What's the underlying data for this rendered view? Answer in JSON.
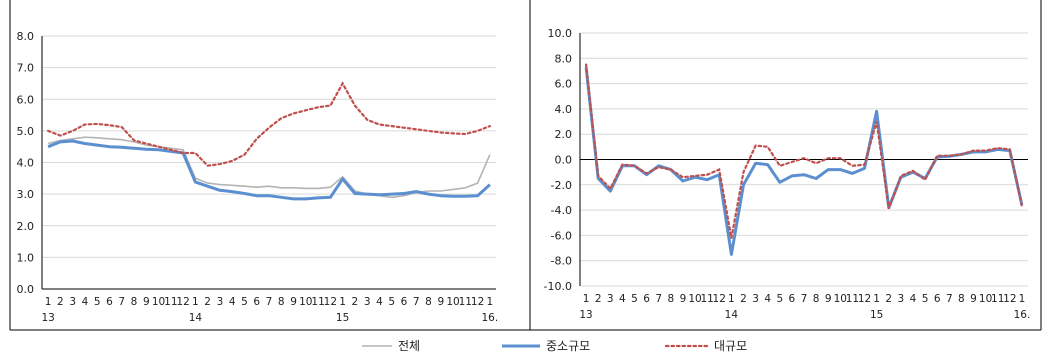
{
  "colors": {
    "total": "#b4b4b4",
    "sme": "#5b8fd0",
    "large": "#c0504d",
    "grid": "#d9d9d9",
    "axis": "#000000"
  },
  "legend": [
    {
      "key": "total",
      "label": "전체",
      "style": "solid-thin"
    },
    {
      "key": "sme",
      "label": "중소규모",
      "style": "solid-thick"
    },
    {
      "key": "large",
      "label": "대규모",
      "style": "dotted"
    }
  ],
  "chart_data": [
    {
      "type": "line",
      "ylim": [
        0,
        8
      ],
      "ytick_step": 1,
      "ytick_labels": [
        "0.0",
        "1.0",
        "2.0",
        "3.0",
        "4.0",
        "5.0",
        "6.0",
        "7.0",
        "8.0"
      ],
      "x_labels": [
        "1",
        "2",
        "3",
        "4",
        "5",
        "6",
        "7",
        "8",
        "9",
        "10",
        "11",
        "12",
        "1",
        "2",
        "3",
        "4",
        "5",
        "6",
        "7",
        "8",
        "9",
        "10",
        "11",
        "12",
        "1",
        "2",
        "3",
        "4",
        "5",
        "6",
        "7",
        "8",
        "9",
        "10",
        "11",
        "12",
        "1"
      ],
      "year_labels": [
        {
          "index": 0,
          "text": "13"
        },
        {
          "index": 12,
          "text": "14"
        },
        {
          "index": 24,
          "text": "15"
        },
        {
          "index": 36,
          "text": "16."
        }
      ],
      "series": [
        {
          "key": "total",
          "values": [
            4.6,
            4.7,
            4.75,
            4.8,
            4.78,
            4.75,
            4.72,
            4.65,
            4.55,
            4.5,
            4.45,
            4.4,
            3.5,
            3.35,
            3.3,
            3.28,
            3.25,
            3.22,
            3.25,
            3.2,
            3.2,
            3.18,
            3.18,
            3.22,
            3.55,
            3.1,
            3.0,
            2.95,
            2.9,
            2.95,
            3.05,
            3.1,
            3.1,
            3.15,
            3.2,
            3.35,
            4.25
          ]
        },
        {
          "key": "sme",
          "values": [
            4.5,
            4.65,
            4.68,
            4.6,
            4.55,
            4.5,
            4.48,
            4.45,
            4.42,
            4.4,
            4.35,
            4.3,
            3.38,
            3.25,
            3.12,
            3.08,
            3.02,
            2.95,
            2.95,
            2.9,
            2.85,
            2.85,
            2.88,
            2.9,
            3.48,
            3.02,
            3.0,
            2.98,
            3.0,
            3.02,
            3.08,
            3.0,
            2.95,
            2.93,
            2.93,
            2.95,
            3.3
          ]
        },
        {
          "key": "large",
          "values": [
            5.0,
            4.85,
            5.0,
            5.2,
            5.22,
            5.18,
            5.12,
            4.7,
            4.6,
            4.5,
            4.4,
            4.3,
            4.3,
            3.9,
            3.95,
            4.05,
            4.25,
            4.75,
            5.1,
            5.4,
            5.55,
            5.65,
            5.75,
            5.8,
            6.5,
            5.8,
            5.35,
            5.2,
            5.15,
            5.1,
            5.05,
            5.0,
            4.95,
            4.92,
            4.9,
            5.0,
            5.15
          ]
        }
      ]
    },
    {
      "type": "line",
      "ylim": [
        -10,
        10
      ],
      "ytick_step": 2,
      "ytick_labels": [
        "-10.0",
        "-8.0",
        "-6.0",
        "-4.0",
        "-2.0",
        "0.0",
        "2.0",
        "4.0",
        "6.0",
        "8.0",
        "10.0"
      ],
      "x_labels": [
        "1",
        "2",
        "3",
        "4",
        "5",
        "6",
        "7",
        "8",
        "9",
        "10",
        "11",
        "12",
        "1",
        "2",
        "3",
        "4",
        "5",
        "6",
        "7",
        "8",
        "9",
        "10",
        "11",
        "12",
        "1",
        "2",
        "3",
        "4",
        "5",
        "6",
        "7",
        "8",
        "9",
        "10",
        "11",
        "12",
        "1"
      ],
      "year_labels": [
        {
          "index": 0,
          "text": "13"
        },
        {
          "index": 12,
          "text": "14"
        },
        {
          "index": 24,
          "text": "15"
        },
        {
          "index": 36,
          "text": "16."
        }
      ],
      "series": [
        {
          "key": "sme",
          "values": [
            7.3,
            -1.5,
            -2.5,
            -0.5,
            -0.5,
            -1.2,
            -0.5,
            -0.8,
            -1.7,
            -1.4,
            -1.6,
            -1.2,
            -7.5,
            -2.0,
            -0.3,
            -0.4,
            -1.8,
            -1.3,
            -1.2,
            -1.5,
            -0.8,
            -0.8,
            -1.1,
            -0.7,
            3.8,
            -3.8,
            -1.4,
            -1.0,
            -1.5,
            0.2,
            0.25,
            0.4,
            0.6,
            0.6,
            0.8,
            0.7,
            -3.6
          ]
        },
        {
          "key": "large",
          "values": [
            7.5,
            -1.3,
            -2.3,
            -0.4,
            -0.5,
            -1.1,
            -0.6,
            -0.8,
            -1.4,
            -1.3,
            -1.2,
            -0.8,
            -6.2,
            -1.0,
            1.1,
            1.0,
            -0.5,
            -0.2,
            0.1,
            -0.3,
            0.1,
            0.1,
            -0.5,
            -0.4,
            3.0,
            -3.9,
            -1.3,
            -0.9,
            -1.6,
            0.3,
            0.3,
            0.4,
            0.7,
            0.7,
            0.9,
            0.8,
            -3.7
          ]
        }
      ]
    }
  ]
}
